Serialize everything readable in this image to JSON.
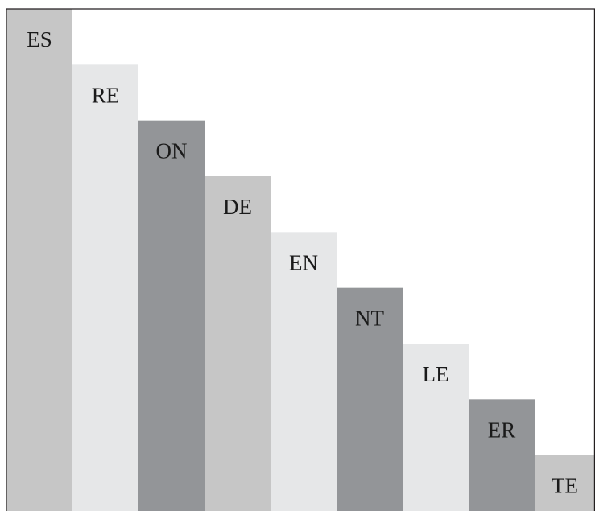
{
  "chart_data": {
    "type": "bar",
    "categories": [
      "ES",
      "RE",
      "ON",
      "DE",
      "EN",
      "NT",
      "LE",
      "ER",
      "TE"
    ],
    "values": [
      9,
      8,
      7,
      6,
      5,
      4,
      3,
      2,
      1
    ],
    "ylim": [
      0,
      9
    ],
    "grid": false,
    "legend": "none",
    "bar_colors": [
      "#c6c6c6",
      "#e6e7e8",
      "#939598",
      "#c6c6c6",
      "#e6e7e8",
      "#939598",
      "#e6e7e8",
      "#939598",
      "#c6c6c6"
    ],
    "frame_color": "#231f20"
  }
}
